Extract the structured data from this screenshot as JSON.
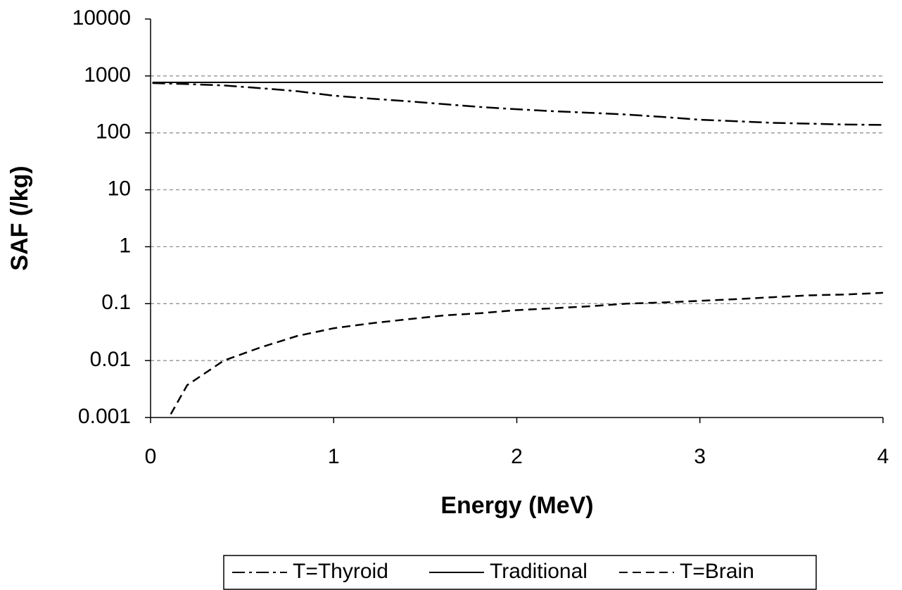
{
  "chart_data": {
    "type": "line",
    "x_label": "Energy (MeV)",
    "y_label": "SAF (/kg)",
    "xlim": [
      0,
      4
    ],
    "xticks": [
      0,
      1,
      2,
      3,
      4
    ],
    "ylim": [
      0.001,
      10000
    ],
    "yticks": [
      0.001,
      0.01,
      0.1,
      1,
      10,
      100,
      1000,
      10000
    ],
    "log_y": true,
    "grid": true,
    "legend": "bottom",
    "series": [
      {
        "name": "T=Thyroid",
        "color": "#000000",
        "dash": "dash-dot",
        "x": [
          0.01,
          0.2,
          0.4,
          0.6,
          0.8,
          1,
          1.2,
          1.4,
          1.6,
          1.8,
          2,
          2.2,
          2.4,
          2.6,
          2.8,
          3,
          3.2,
          3.4,
          3.6,
          3.8,
          4
        ],
        "values": [
          750,
          720,
          680,
          610,
          540,
          450,
          400,
          360,
          320,
          285,
          260,
          240,
          225,
          210,
          190,
          170,
          160,
          150,
          145,
          140,
          138
        ]
      },
      {
        "name": "Traditional",
        "color": "#000000",
        "dash": "solid",
        "x": [
          0.01,
          4
        ],
        "values": [
          770,
          770
        ]
      },
      {
        "name": "T=Brain",
        "color": "#000000",
        "dash": "dash",
        "x": [
          0.08,
          0.1,
          0.2,
          0.4,
          0.6,
          0.8,
          1,
          1.2,
          1.4,
          1.6,
          1.8,
          2,
          2.2,
          2.4,
          2.6,
          2.8,
          3,
          3.2,
          3.4,
          3.6,
          3.8,
          4
        ],
        "values": [
          0.0007,
          0.001,
          0.0037,
          0.01,
          0.017,
          0.027,
          0.037,
          0.045,
          0.053,
          0.062,
          0.068,
          0.077,
          0.083,
          0.09,
          0.1,
          0.105,
          0.112,
          0.12,
          0.13,
          0.14,
          0.145,
          0.155
        ]
      }
    ]
  }
}
